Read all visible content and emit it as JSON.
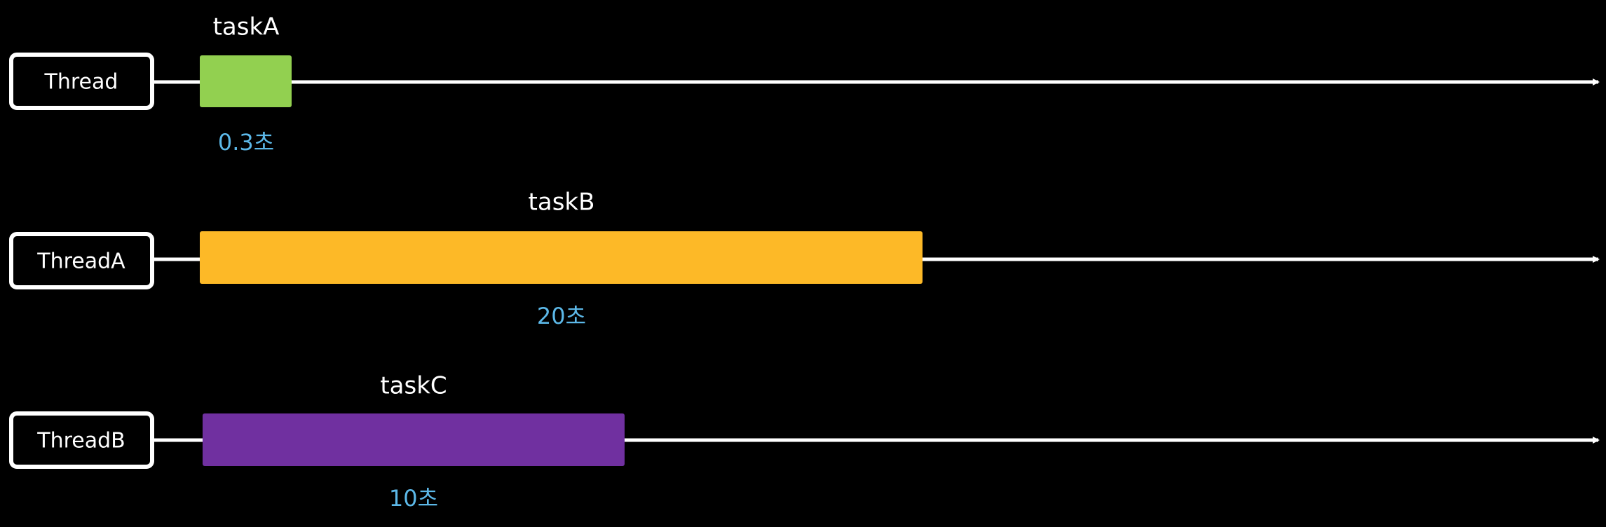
{
  "rows": [
    {
      "thread": "Thread",
      "task": "taskA",
      "duration": "0.3초",
      "color": "#92d050"
    },
    {
      "thread": "ThreadA",
      "task": "taskB",
      "duration": "20초",
      "color": "#fdb927"
    },
    {
      "thread": "ThreadB",
      "task": "taskC",
      "duration": "10초",
      "color": "#7030a0"
    }
  ]
}
